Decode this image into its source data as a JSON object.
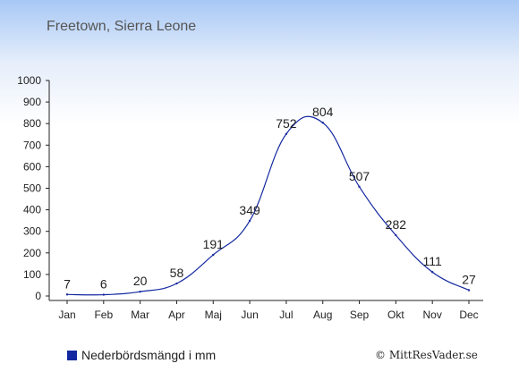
{
  "location": "Freetown, Sierra Leone",
  "legend_label": "Nederbördsmängd i mm",
  "copyright": "© MittResVader.se",
  "colors": {
    "line": "#1428a0",
    "swatch": "#1428a0"
  },
  "chart_data": {
    "type": "line",
    "categories": [
      "Jan",
      "Feb",
      "Mar",
      "Apr",
      "Maj",
      "Jun",
      "Jul",
      "Aug",
      "Sep",
      "Okt",
      "Nov",
      "Dec"
    ],
    "series": [
      {
        "values": [
          7,
          6,
          20,
          58,
          191,
          349,
          752,
          804,
          507,
          282,
          111,
          27
        ]
      }
    ],
    "data_labels": [
      "7",
      "6",
      "20",
      "58",
      "191",
      "349",
      "752",
      "804",
      "507",
      "282",
      "111",
      "27"
    ],
    "y_ticks": [
      0,
      100,
      200,
      300,
      400,
      500,
      600,
      700,
      800,
      900,
      1000
    ],
    "ylim": [
      0,
      1000
    ],
    "grid": false
  }
}
